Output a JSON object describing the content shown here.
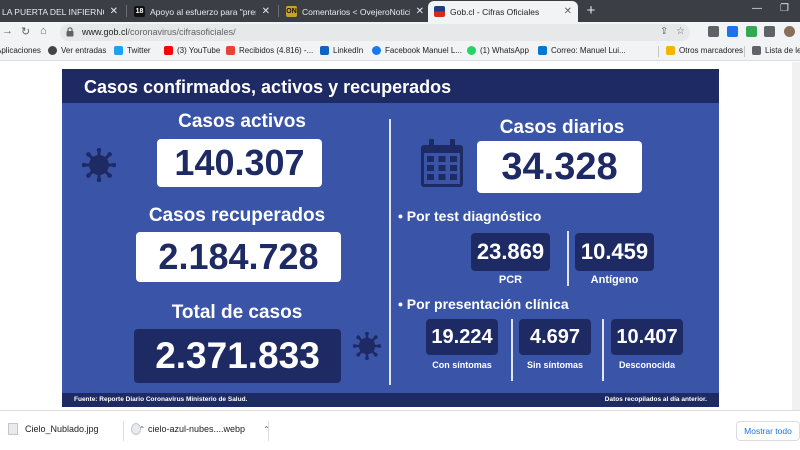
{
  "browser": {
    "tabs": [
      {
        "title": "LA PUERTA DEL INFIERNO | Págin",
        "active": false
      },
      {
        "title": "Apoyo al esfuerzo para \"preserva",
        "active": false
      },
      {
        "title": "Comentarios < OvejeroNoticias —",
        "active": false
      },
      {
        "title": "Gob.cl - Cifras Oficiales",
        "active": true
      }
    ],
    "url_domain": "www.gob.cl",
    "url_path": "/coronavirus/cifrasoficiales/",
    "bookmarks": [
      "Aplicaciones",
      "Ver entradas",
      "Twitter",
      "(3) YouTube",
      "Recibidos (4.816) -...",
      "LinkedIn",
      "Facebook Manuel L...",
      "(1) WhatsApp",
      "Correo: Manuel Lui...",
      "Otros marcadores",
      "Lista de le"
    ]
  },
  "infographic": {
    "title": "Casos confirmados, activos y recuperados",
    "activos_label": "Casos activos",
    "activos_value": "140.307",
    "recuperados_label": "Casos recuperados",
    "recuperados_value": "2.184.728",
    "total_label": "Total de casos",
    "total_value": "2.371.833",
    "diarios_label": "Casos diarios",
    "diarios_value": "34.328",
    "test_heading": "• Por test diagnóstico",
    "pcr_value": "23.869",
    "pcr_label": "PCR",
    "antigeno_value": "10.459",
    "antigeno_label": "Antígeno",
    "clinica_heading": "• Por presentación clínica",
    "con_value": "19.224",
    "con_label": "Con síntomas",
    "sin_value": "4.697",
    "sin_label": "Sin síntomas",
    "desc_value": "10.407",
    "desc_label": "Desconocida",
    "footer_left": "Fuente: Reporte Diario Coronavirus Ministerio de Salud.",
    "footer_right": "Datos recopilados al día anterior."
  },
  "downloads": {
    "items": [
      "Cielo_Nublado.jpg",
      "cielo-azul-nubes....webp"
    ],
    "show_all": "Mostrar todo"
  },
  "colors": {
    "card_bg": "#3a55a8",
    "card_dark": "#1e2a64",
    "tab_strip": "#3b3f45"
  }
}
